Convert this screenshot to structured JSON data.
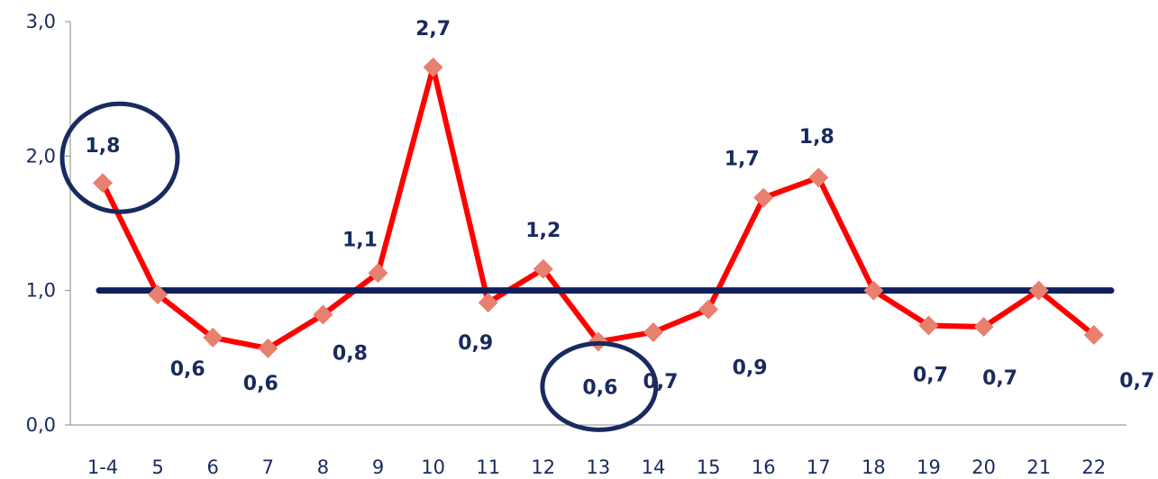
{
  "chart_data": {
    "type": "line",
    "categories": [
      "1-4",
      "5",
      "6",
      "7",
      "8",
      "9",
      "10",
      "11",
      "12",
      "13",
      "14",
      "15",
      "16",
      "17",
      "18",
      "19",
      "20",
      "21",
      "22"
    ],
    "series": [
      {
        "values": [
          1.8,
          0.97,
          0.65,
          0.57,
          0.82,
          1.13,
          2.66,
          0.91,
          1.16,
          0.62,
          0.69,
          0.86,
          1.69,
          1.84,
          1.0,
          0.74,
          0.73,
          1.0,
          0.67
        ],
        "labels": [
          "1,8",
          "",
          "0,6",
          "0,6",
          "0,8",
          "1,1",
          "2,7",
          "0,9",
          "1,2",
          "0,6",
          "0,7",
          "0,9",
          "1,7",
          "1,8",
          "",
          "0,7",
          "0,7",
          "",
          "0,7"
        ]
      }
    ],
    "reference_line": {
      "value": 1.0
    },
    "highlighted_points": [
      "1-4",
      "13"
    ],
    "yticks": [
      "0,0",
      "1,0",
      "2,0",
      "3,0"
    ],
    "ylim": [
      0,
      3
    ],
    "grid": false,
    "legend": "none",
    "colors": {
      "series_line": "#ff0000",
      "markers": "#e8806f",
      "reference_line": "#0f1f5c",
      "highlight_ellipse": "#1a2a5e",
      "text": "#1a2a5e",
      "axis": "#888888"
    }
  }
}
